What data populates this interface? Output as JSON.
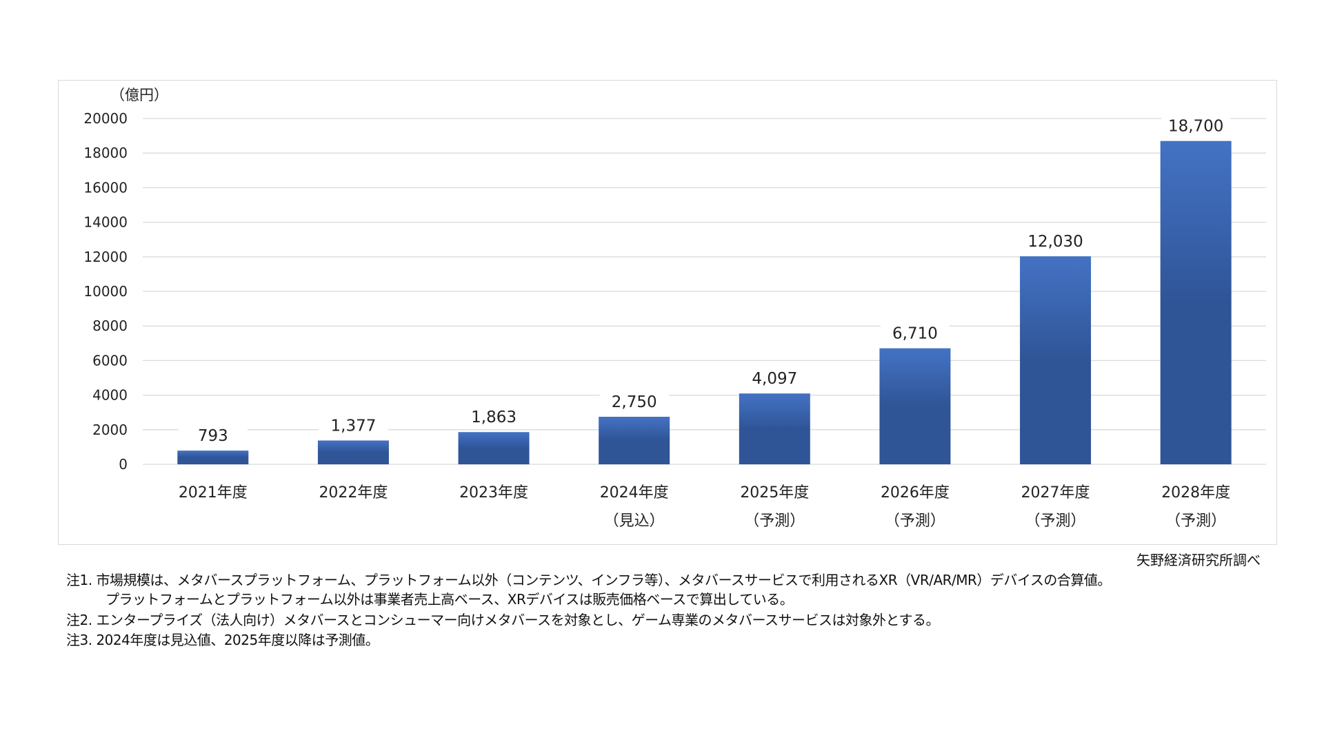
{
  "chart_data": {
    "type": "bar",
    "ylabel": "（億円）",
    "ylim": [
      0,
      20000
    ],
    "yticks": [
      0,
      2000,
      4000,
      6000,
      8000,
      10000,
      12000,
      14000,
      16000,
      18000,
      20000
    ],
    "grid": true,
    "categories": [
      [
        "2021年度",
        ""
      ],
      [
        "2022年度",
        ""
      ],
      [
        "2023年度",
        ""
      ],
      [
        "2024年度",
        "（見込）"
      ],
      [
        "2025年度",
        "（予測）"
      ],
      [
        "2026年度",
        "（予測）"
      ],
      [
        "2027年度",
        "（予測）"
      ],
      [
        "2028年度",
        "（予測）"
      ]
    ],
    "values": [
      793,
      1377,
      1863,
      2750,
      4097,
      6710,
      12030,
      18700
    ],
    "data_labels": [
      "793",
      "1,377",
      "1,863",
      "2,750",
      "4,097",
      "6,710",
      "12,030",
      "18,700"
    ],
    "colors": {
      "bar_top": "#4472c4",
      "bar_bottom": "#2f5597",
      "grid": "#d9d9d9"
    }
  },
  "source": "矢野経済研究所調べ",
  "notes": [
    "注1. 市場規模は、メタバースプラットフォーム、プラットフォーム以外（コンテンツ、インフラ等）、メタバースサービスで利用されるXR（VR/AR/MR）デバイスの合算値。",
    "プラットフォームとプラットフォーム以外は事業者売上高ベース、XRデバイスは販売価格ベースで算出している。",
    "注2. エンタープライズ（法人向け）メタバースとコンシューマー向けメタバースを対象とし、ゲーム専業のメタバースサービスは対象外とする。",
    "注3. 2024年度は見込値、2025年度以降は予測値。"
  ]
}
